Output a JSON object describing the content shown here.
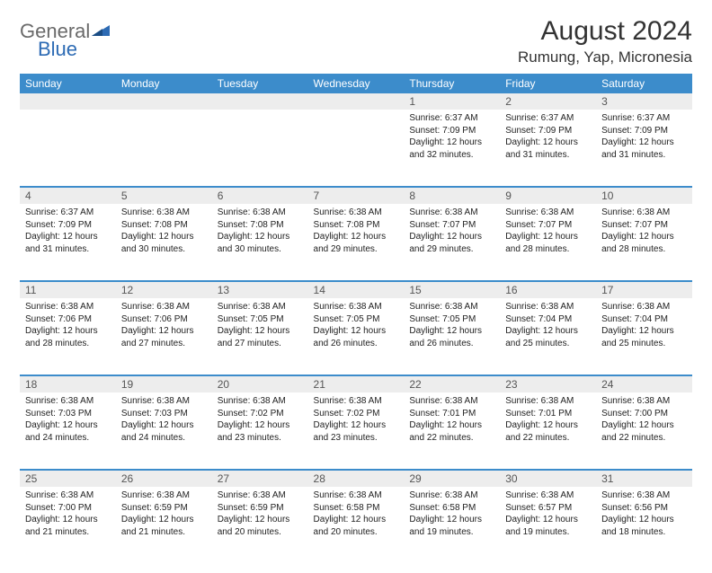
{
  "brand": {
    "general": "General",
    "blue": "Blue",
    "flag_color": "#2d6bb4"
  },
  "title": "August 2024",
  "location": "Rumung, Yap, Micronesia",
  "header_bg": "#3c8ccb",
  "daynum_bg": "#ededed",
  "weekdays": [
    "Sunday",
    "Monday",
    "Tuesday",
    "Wednesday",
    "Thursday",
    "Friday",
    "Saturday"
  ],
  "weeks": [
    {
      "nums": [
        "",
        "",
        "",
        "",
        "1",
        "2",
        "3"
      ],
      "cells": [
        {},
        {},
        {},
        {},
        {
          "sunrise": "Sunrise: 6:37 AM",
          "sunset": "Sunset: 7:09 PM",
          "day1": "Daylight: 12 hours",
          "day2": "and 32 minutes."
        },
        {
          "sunrise": "Sunrise: 6:37 AM",
          "sunset": "Sunset: 7:09 PM",
          "day1": "Daylight: 12 hours",
          "day2": "and 31 minutes."
        },
        {
          "sunrise": "Sunrise: 6:37 AM",
          "sunset": "Sunset: 7:09 PM",
          "day1": "Daylight: 12 hours",
          "day2": "and 31 minutes."
        }
      ]
    },
    {
      "nums": [
        "4",
        "5",
        "6",
        "7",
        "8",
        "9",
        "10"
      ],
      "cells": [
        {
          "sunrise": "Sunrise: 6:37 AM",
          "sunset": "Sunset: 7:09 PM",
          "day1": "Daylight: 12 hours",
          "day2": "and 31 minutes."
        },
        {
          "sunrise": "Sunrise: 6:38 AM",
          "sunset": "Sunset: 7:08 PM",
          "day1": "Daylight: 12 hours",
          "day2": "and 30 minutes."
        },
        {
          "sunrise": "Sunrise: 6:38 AM",
          "sunset": "Sunset: 7:08 PM",
          "day1": "Daylight: 12 hours",
          "day2": "and 30 minutes."
        },
        {
          "sunrise": "Sunrise: 6:38 AM",
          "sunset": "Sunset: 7:08 PM",
          "day1": "Daylight: 12 hours",
          "day2": "and 29 minutes."
        },
        {
          "sunrise": "Sunrise: 6:38 AM",
          "sunset": "Sunset: 7:07 PM",
          "day1": "Daylight: 12 hours",
          "day2": "and 29 minutes."
        },
        {
          "sunrise": "Sunrise: 6:38 AM",
          "sunset": "Sunset: 7:07 PM",
          "day1": "Daylight: 12 hours",
          "day2": "and 28 minutes."
        },
        {
          "sunrise": "Sunrise: 6:38 AM",
          "sunset": "Sunset: 7:07 PM",
          "day1": "Daylight: 12 hours",
          "day2": "and 28 minutes."
        }
      ]
    },
    {
      "nums": [
        "11",
        "12",
        "13",
        "14",
        "15",
        "16",
        "17"
      ],
      "cells": [
        {
          "sunrise": "Sunrise: 6:38 AM",
          "sunset": "Sunset: 7:06 PM",
          "day1": "Daylight: 12 hours",
          "day2": "and 28 minutes."
        },
        {
          "sunrise": "Sunrise: 6:38 AM",
          "sunset": "Sunset: 7:06 PM",
          "day1": "Daylight: 12 hours",
          "day2": "and 27 minutes."
        },
        {
          "sunrise": "Sunrise: 6:38 AM",
          "sunset": "Sunset: 7:05 PM",
          "day1": "Daylight: 12 hours",
          "day2": "and 27 minutes."
        },
        {
          "sunrise": "Sunrise: 6:38 AM",
          "sunset": "Sunset: 7:05 PM",
          "day1": "Daylight: 12 hours",
          "day2": "and 26 minutes."
        },
        {
          "sunrise": "Sunrise: 6:38 AM",
          "sunset": "Sunset: 7:05 PM",
          "day1": "Daylight: 12 hours",
          "day2": "and 26 minutes."
        },
        {
          "sunrise": "Sunrise: 6:38 AM",
          "sunset": "Sunset: 7:04 PM",
          "day1": "Daylight: 12 hours",
          "day2": "and 25 minutes."
        },
        {
          "sunrise": "Sunrise: 6:38 AM",
          "sunset": "Sunset: 7:04 PM",
          "day1": "Daylight: 12 hours",
          "day2": "and 25 minutes."
        }
      ]
    },
    {
      "nums": [
        "18",
        "19",
        "20",
        "21",
        "22",
        "23",
        "24"
      ],
      "cells": [
        {
          "sunrise": "Sunrise: 6:38 AM",
          "sunset": "Sunset: 7:03 PM",
          "day1": "Daylight: 12 hours",
          "day2": "and 24 minutes."
        },
        {
          "sunrise": "Sunrise: 6:38 AM",
          "sunset": "Sunset: 7:03 PM",
          "day1": "Daylight: 12 hours",
          "day2": "and 24 minutes."
        },
        {
          "sunrise": "Sunrise: 6:38 AM",
          "sunset": "Sunset: 7:02 PM",
          "day1": "Daylight: 12 hours",
          "day2": "and 23 minutes."
        },
        {
          "sunrise": "Sunrise: 6:38 AM",
          "sunset": "Sunset: 7:02 PM",
          "day1": "Daylight: 12 hours",
          "day2": "and 23 minutes."
        },
        {
          "sunrise": "Sunrise: 6:38 AM",
          "sunset": "Sunset: 7:01 PM",
          "day1": "Daylight: 12 hours",
          "day2": "and 22 minutes."
        },
        {
          "sunrise": "Sunrise: 6:38 AM",
          "sunset": "Sunset: 7:01 PM",
          "day1": "Daylight: 12 hours",
          "day2": "and 22 minutes."
        },
        {
          "sunrise": "Sunrise: 6:38 AM",
          "sunset": "Sunset: 7:00 PM",
          "day1": "Daylight: 12 hours",
          "day2": "and 22 minutes."
        }
      ]
    },
    {
      "nums": [
        "25",
        "26",
        "27",
        "28",
        "29",
        "30",
        "31"
      ],
      "cells": [
        {
          "sunrise": "Sunrise: 6:38 AM",
          "sunset": "Sunset: 7:00 PM",
          "day1": "Daylight: 12 hours",
          "day2": "and 21 minutes."
        },
        {
          "sunrise": "Sunrise: 6:38 AM",
          "sunset": "Sunset: 6:59 PM",
          "day1": "Daylight: 12 hours",
          "day2": "and 21 minutes."
        },
        {
          "sunrise": "Sunrise: 6:38 AM",
          "sunset": "Sunset: 6:59 PM",
          "day1": "Daylight: 12 hours",
          "day2": "and 20 minutes."
        },
        {
          "sunrise": "Sunrise: 6:38 AM",
          "sunset": "Sunset: 6:58 PM",
          "day1": "Daylight: 12 hours",
          "day2": "and 20 minutes."
        },
        {
          "sunrise": "Sunrise: 6:38 AM",
          "sunset": "Sunset: 6:58 PM",
          "day1": "Daylight: 12 hours",
          "day2": "and 19 minutes."
        },
        {
          "sunrise": "Sunrise: 6:38 AM",
          "sunset": "Sunset: 6:57 PM",
          "day1": "Daylight: 12 hours",
          "day2": "and 19 minutes."
        },
        {
          "sunrise": "Sunrise: 6:38 AM",
          "sunset": "Sunset: 6:56 PM",
          "day1": "Daylight: 12 hours",
          "day2": "and 18 minutes."
        }
      ]
    }
  ]
}
